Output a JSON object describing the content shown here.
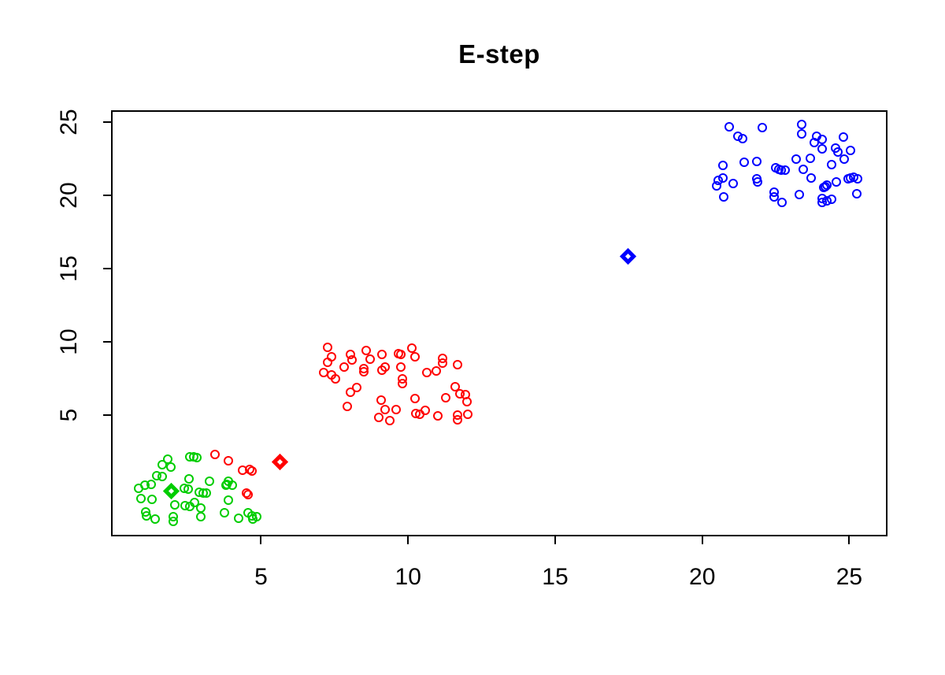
{
  "title": "E-step",
  "colors": {
    "background": "#FFFFFF",
    "axis": "#000000",
    "cluster_green": "#00CD00",
    "cluster_red": "#FF0000",
    "cluster_blue": "#0000FF"
  },
  "chart_data": {
    "type": "scatter",
    "title": "E-step",
    "xlabel": "",
    "ylabel": "",
    "xlim": [
      -0.1,
      26.3
    ],
    "ylim": [
      -3.3,
      25.8
    ],
    "x_ticks": [
      5,
      10,
      15,
      20,
      25
    ],
    "y_ticks": [
      5,
      10,
      15,
      20,
      25
    ],
    "grid": false,
    "legend": null,
    "marker_style": "open-circle",
    "series": [
      {
        "name": "cluster-green",
        "color": "#00CD00",
        "marker": "circle",
        "points": [
          [
            1.84,
            1.97
          ],
          [
            2.59,
            2.15
          ],
          [
            2.7,
            2.15
          ],
          [
            2.81,
            2.1
          ],
          [
            1.63,
            1.61
          ],
          [
            1.94,
            1.43
          ],
          [
            1.45,
            0.86
          ],
          [
            1.63,
            0.77
          ],
          [
            1.26,
            0.27
          ],
          [
            1.06,
            0.18
          ],
          [
            0.85,
            0.0
          ],
          [
            2.55,
            0.63
          ],
          [
            3.26,
            0.45
          ],
          [
            3.89,
            0.45
          ],
          [
            4.02,
            0.18
          ],
          [
            2.4,
            0.0
          ],
          [
            2.52,
            -0.09
          ],
          [
            2.91,
            -0.31
          ],
          [
            3.02,
            -0.36
          ],
          [
            3.13,
            -0.36
          ],
          [
            0.92,
            -0.72
          ],
          [
            1.28,
            -0.77
          ],
          [
            2.08,
            -1.13
          ],
          [
            2.43,
            -1.2
          ],
          [
            2.59,
            -1.25
          ],
          [
            2.73,
            -0.98
          ],
          [
            2.95,
            -1.38
          ],
          [
            1.08,
            -1.61
          ],
          [
            1.1,
            -1.88
          ],
          [
            1.39,
            -2.1
          ],
          [
            2.01,
            -1.97
          ],
          [
            2.01,
            -2.27
          ],
          [
            2.95,
            -1.97
          ],
          [
            3.76,
            -1.7
          ],
          [
            3.89,
            -0.81
          ],
          [
            3.84,
            0.27
          ],
          [
            3.8,
            0.22
          ],
          [
            4.24,
            -2.06
          ],
          [
            4.55,
            -1.7
          ],
          [
            4.69,
            -1.88
          ],
          [
            4.73,
            -2.1
          ],
          [
            4.84,
            -1.97
          ]
        ]
      },
      {
        "name": "cluster-red",
        "color": "#FF0000",
        "marker": "circle",
        "points": [
          [
            3.44,
            2.27
          ],
          [
            3.89,
            1.88
          ],
          [
            4.38,
            1.2
          ],
          [
            4.6,
            1.25
          ],
          [
            4.69,
            1.16
          ],
          [
            4.5,
            -0.32
          ],
          [
            4.56,
            -0.44
          ],
          [
            7.27,
            9.59
          ],
          [
            7.41,
            8.96
          ],
          [
            7.25,
            8.57
          ],
          [
            7.14,
            7.89
          ],
          [
            7.39,
            7.74
          ],
          [
            7.54,
            7.44
          ],
          [
            8.05,
            9.1
          ],
          [
            8.1,
            8.75
          ],
          [
            7.83,
            8.24
          ],
          [
            8.58,
            9.41
          ],
          [
            8.72,
            8.82
          ],
          [
            8.49,
            8.16
          ],
          [
            8.49,
            7.92
          ],
          [
            9.1,
            9.1
          ],
          [
            9.21,
            8.28
          ],
          [
            9.1,
            8.03
          ],
          [
            8.25,
            6.84
          ],
          [
            8.05,
            6.54
          ],
          [
            7.94,
            5.55
          ],
          [
            9.68,
            9.16
          ],
          [
            9.74,
            9.12
          ],
          [
            10.13,
            9.53
          ],
          [
            10.24,
            8.96
          ],
          [
            9.74,
            8.24
          ],
          [
            9.81,
            7.44
          ],
          [
            9.81,
            7.13
          ],
          [
            9.08,
            6.01
          ],
          [
            9.23,
            5.34
          ],
          [
            9.59,
            5.38
          ],
          [
            9.01,
            4.84
          ],
          [
            9.39,
            4.62
          ],
          [
            10.24,
            6.13
          ],
          [
            10.26,
            5.11
          ],
          [
            10.39,
            5.05
          ],
          [
            10.57,
            5.28
          ],
          [
            10.63,
            7.89
          ],
          [
            10.97,
            7.97
          ],
          [
            11.17,
            8.87
          ],
          [
            11.17,
            8.56
          ],
          [
            11.68,
            8.42
          ],
          [
            11.28,
            6.18
          ],
          [
            11.6,
            6.9
          ],
          [
            11.76,
            6.45
          ],
          [
            11.95,
            6.36
          ],
          [
            12.01,
            5.88
          ],
          [
            11.02,
            4.93
          ],
          [
            11.67,
            4.98
          ],
          [
            11.67,
            4.66
          ],
          [
            12.04,
            5.05
          ]
        ]
      },
      {
        "name": "cluster-blue",
        "color": "#0000FF",
        "marker": "circle",
        "points": [
          [
            20.91,
            24.69
          ],
          [
            21.2,
            24.02
          ],
          [
            21.38,
            23.87
          ],
          [
            22.04,
            24.64
          ],
          [
            23.38,
            24.82
          ],
          [
            23.38,
            24.19
          ],
          [
            23.88,
            24.02
          ],
          [
            23.82,
            23.57
          ],
          [
            24.09,
            23.8
          ],
          [
            24.09,
            23.16
          ],
          [
            24.52,
            23.24
          ],
          [
            24.79,
            23.98
          ],
          [
            24.61,
            22.97
          ],
          [
            25.04,
            23.03
          ],
          [
            24.83,
            22.44
          ],
          [
            23.2,
            22.49
          ],
          [
            23.67,
            22.54
          ],
          [
            20.7,
            22.01
          ],
          [
            21.42,
            22.26
          ],
          [
            21.86,
            22.31
          ],
          [
            22.51,
            21.9
          ],
          [
            22.6,
            21.77
          ],
          [
            22.69,
            21.72
          ],
          [
            22.81,
            21.72
          ],
          [
            23.43,
            21.77
          ],
          [
            24.41,
            22.08
          ],
          [
            20.55,
            21.01
          ],
          [
            20.7,
            21.18
          ],
          [
            21.06,
            20.82
          ],
          [
            20.49,
            20.65
          ],
          [
            21.86,
            21.11
          ],
          [
            21.89,
            20.88
          ],
          [
            23.7,
            21.18
          ],
          [
            24.23,
            20.7
          ],
          [
            24.56,
            20.93
          ],
          [
            24.95,
            21.11
          ],
          [
            25.05,
            21.18
          ],
          [
            25.16,
            21.24
          ],
          [
            25.28,
            21.11
          ],
          [
            20.73,
            19.86
          ],
          [
            22.45,
            20.22
          ],
          [
            22.45,
            19.86
          ],
          [
            22.72,
            19.5
          ],
          [
            23.29,
            20.04
          ],
          [
            24.18,
            20.58
          ],
          [
            24.12,
            20.52
          ],
          [
            24.09,
            19.75
          ],
          [
            24.09,
            19.5
          ],
          [
            24.23,
            19.62
          ],
          [
            25.25,
            20.11
          ],
          [
            24.39,
            19.71
          ]
        ]
      }
    ],
    "centroids": [
      {
        "name": "centroid-green",
        "color": "#00CD00",
        "x": 1.95,
        "y": -0.22
      },
      {
        "name": "centroid-red",
        "color": "#FF0000",
        "x": 5.65,
        "y": 1.8
      },
      {
        "name": "centroid-blue",
        "color": "#0000FF",
        "x": 17.49,
        "y": 15.81
      }
    ]
  }
}
